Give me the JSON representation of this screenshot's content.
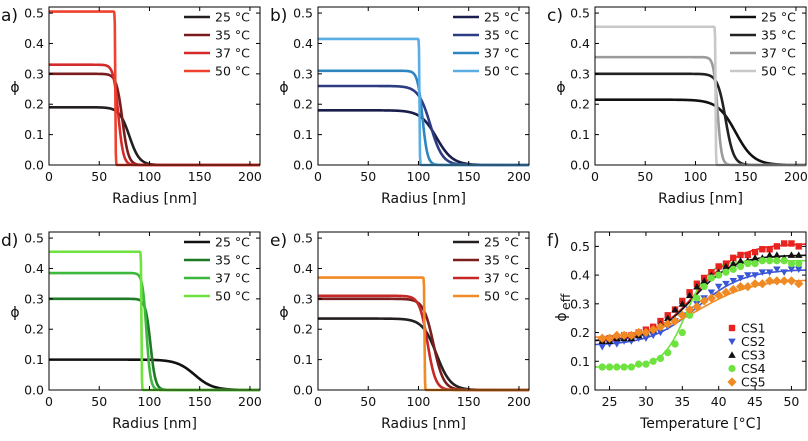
{
  "chart_data": [
    {
      "type": "line",
      "panel_label": "a)",
      "xlabel": "Radius [nm]",
      "ylabel": "ϕ",
      "xlim": [
        0,
        210
      ],
      "ylim": [
        0,
        0.52
      ],
      "xticks": [
        0,
        50,
        100,
        150,
        200
      ],
      "yticks": [
        0.0,
        0.1,
        0.2,
        0.3,
        0.4,
        0.5
      ],
      "legend_position": "top-right",
      "series": [
        {
          "name": "25 °C",
          "color": "#231f20",
          "plateau": 0.19,
          "r_edge": 80,
          "width": 5
        },
        {
          "name": "35 °C",
          "color": "#7a1c1c",
          "plateau": 0.3,
          "r_edge": 73,
          "width": 3
        },
        {
          "name": "37 °C",
          "color": "#d42a2a",
          "plateau": 0.33,
          "r_edge": 69,
          "width": 2.5
        },
        {
          "name": "50 °C",
          "color": "#f0412e",
          "plateau": 0.505,
          "r_edge": 66,
          "width": 0.2
        }
      ]
    },
    {
      "type": "line",
      "panel_label": "b)",
      "xlabel": "Radius [nm]",
      "ylabel": "ϕ",
      "xlim": [
        0,
        210
      ],
      "ylim": [
        0,
        0.52
      ],
      "xticks": [
        0,
        50,
        100,
        150,
        200
      ],
      "yticks": [
        0.0,
        0.1,
        0.2,
        0.3,
        0.4,
        0.5
      ],
      "legend_position": "top-right",
      "series": [
        {
          "name": "25 °C",
          "color": "#1a1c4a",
          "plateau": 0.18,
          "r_edge": 118,
          "width": 8
        },
        {
          "name": "35 °C",
          "color": "#2b3c82",
          "plateau": 0.26,
          "r_edge": 112,
          "width": 6
        },
        {
          "name": "37 °C",
          "color": "#2e86c1",
          "plateau": 0.31,
          "r_edge": 104,
          "width": 2.5
        },
        {
          "name": "50 °C",
          "color": "#5aaee4",
          "plateau": 0.415,
          "r_edge": 101,
          "width": 0.2
        }
      ]
    },
    {
      "type": "line",
      "panel_label": "c)",
      "xlabel": "Radius [nm]",
      "ylabel": "ϕ",
      "xlim": [
        0,
        210
      ],
      "ylim": [
        0,
        0.52
      ],
      "xticks": [
        0,
        50,
        100,
        150,
        200
      ],
      "yticks": [
        0.0,
        0.1,
        0.2,
        0.3,
        0.4,
        0.5
      ],
      "legend_position": "top-right",
      "series": [
        {
          "name": "25 °C",
          "color": "#111111",
          "plateau": 0.215,
          "r_edge": 140,
          "width": 9
        },
        {
          "name": "35 °C",
          "color": "#222222",
          "plateau": 0.3,
          "r_edge": 130,
          "width": 4
        },
        {
          "name": "37 °C",
          "color": "#9b9b9b",
          "plateau": 0.355,
          "r_edge": 122,
          "width": 2
        },
        {
          "name": "50 °C",
          "color": "#c8c8c8",
          "plateau": 0.455,
          "r_edge": 120,
          "width": 0.2
        }
      ]
    },
    {
      "type": "line",
      "panel_label": "d)",
      "xlabel": "Radius [nm]",
      "ylabel": "ϕ",
      "xlim": [
        0,
        210
      ],
      "ylim": [
        0,
        0.52
      ],
      "xticks": [
        0,
        50,
        100,
        150,
        200
      ],
      "yticks": [
        0.0,
        0.1,
        0.2,
        0.3,
        0.4,
        0.5
      ],
      "legend_position": "top-right",
      "series": [
        {
          "name": "25 °C",
          "color": "#111111",
          "plateau": 0.1,
          "r_edge": 145,
          "width": 9
        },
        {
          "name": "35 °C",
          "color": "#1e7a24",
          "plateau": 0.3,
          "r_edge": 101,
          "width": 2.5
        },
        {
          "name": "37 °C",
          "color": "#3cb83c",
          "plateau": 0.385,
          "r_edge": 97,
          "width": 2
        },
        {
          "name": "50 °C",
          "color": "#6ee23e",
          "plateau": 0.455,
          "r_edge": 92,
          "width": 0.2
        }
      ]
    },
    {
      "type": "line",
      "panel_label": "e)",
      "xlabel": "Radius [nm]",
      "ylabel": "ϕ",
      "xlim": [
        0,
        210
      ],
      "ylim": [
        0,
        0.52
      ],
      "xticks": [
        0,
        50,
        100,
        150,
        200
      ],
      "yticks": [
        0.0,
        0.1,
        0.2,
        0.3,
        0.4,
        0.5
      ],
      "legend_position": "top-right",
      "series": [
        {
          "name": "25 °C",
          "color": "#231f20",
          "plateau": 0.235,
          "r_edge": 118,
          "width": 7
        },
        {
          "name": "35 °C",
          "color": "#7a1e1e",
          "plateau": 0.3,
          "r_edge": 115,
          "width": 5
        },
        {
          "name": "37 °C",
          "color": "#c62828",
          "plateau": 0.31,
          "r_edge": 109,
          "width": 4
        },
        {
          "name": "50 °C",
          "color": "#f08a24",
          "plateau": 0.37,
          "r_edge": 106,
          "width": 0.2
        }
      ]
    },
    {
      "type": "scatter",
      "panel_label": "f)",
      "xlabel": "Temperature [°C]",
      "ylabel": "ϕ",
      "ylabel_subscript": "eff",
      "xlim": [
        23,
        52
      ],
      "ylim": [
        0,
        0.55
      ],
      "xticks": [
        25,
        30,
        35,
        40,
        45,
        50
      ],
      "yticks": [
        0.0,
        0.1,
        0.2,
        0.3,
        0.4,
        0.5
      ],
      "legend_position": "bottom-right",
      "x": [
        24,
        25,
        26,
        27,
        28,
        29,
        30,
        31,
        32,
        33,
        34,
        35,
        36,
        37,
        38,
        39,
        40,
        41,
        42,
        43,
        44,
        45,
        46,
        47,
        48,
        49,
        50,
        51
      ],
      "series": [
        {
          "name": "CS1",
          "marker": "square",
          "color": "#e8231f",
          "values": [
            0.17,
            0.18,
            0.18,
            0.19,
            0.19,
            0.2,
            0.21,
            0.22,
            0.24,
            0.26,
            0.28,
            0.31,
            0.34,
            0.37,
            0.39,
            0.41,
            0.43,
            0.44,
            0.46,
            0.47,
            0.47,
            0.48,
            0.49,
            0.49,
            0.5,
            0.51,
            0.51,
            0.5
          ],
          "fit": {
            "low": 0.17,
            "high": 0.51,
            "mid": 37.0,
            "slope": 3.0
          }
        },
        {
          "name": "CS2",
          "marker": "triangle-down",
          "color": "#3a55d6",
          "values": [
            0.15,
            0.16,
            0.16,
            0.17,
            0.17,
            0.18,
            0.18,
            0.19,
            0.2,
            0.22,
            0.24,
            0.26,
            0.28,
            0.3,
            0.32,
            0.34,
            0.36,
            0.37,
            0.38,
            0.39,
            0.4,
            0.4,
            0.41,
            0.41,
            0.42,
            0.41,
            0.42,
            0.42
          ],
          "fit": {
            "low": 0.155,
            "high": 0.42,
            "mid": 37.0,
            "slope": 3.2
          }
        },
        {
          "name": "CS3",
          "marker": "triangle-up",
          "color": "#111111",
          "values": [
            0.17,
            0.17,
            0.18,
            0.18,
            0.18,
            0.19,
            0.2,
            0.21,
            0.23,
            0.25,
            0.28,
            0.3,
            0.33,
            0.36,
            0.38,
            0.4,
            0.41,
            0.43,
            0.44,
            0.45,
            0.45,
            0.46,
            0.46,
            0.47,
            0.47,
            0.46,
            0.47,
            0.47
          ],
          "fit": {
            "low": 0.17,
            "high": 0.47,
            "mid": 36.5,
            "slope": 2.8
          }
        },
        {
          "name": "CS4",
          "marker": "circle",
          "color": "#6ee23e",
          "values": [
            0.08,
            0.08,
            0.08,
            0.08,
            0.08,
            0.09,
            0.09,
            0.1,
            0.11,
            0.13,
            0.16,
            0.2,
            0.26,
            0.32,
            0.36,
            0.39,
            0.4,
            0.41,
            0.42,
            0.43,
            0.44,
            0.44,
            0.45,
            0.45,
            0.45,
            0.45,
            0.44,
            0.44
          ],
          "fit": {
            "low": 0.08,
            "high": 0.45,
            "mid": 35.5,
            "slope": 1.6
          }
        },
        {
          "name": "CS5",
          "marker": "diamond",
          "color": "#f08a24",
          "values": [
            0.18,
            0.18,
            0.19,
            0.19,
            0.19,
            0.2,
            0.2,
            0.21,
            0.22,
            0.23,
            0.24,
            0.26,
            0.28,
            0.29,
            0.31,
            0.32,
            0.33,
            0.34,
            0.35,
            0.36,
            0.36,
            0.37,
            0.37,
            0.38,
            0.38,
            0.38,
            0.38,
            0.37
          ],
          "fit": {
            "low": 0.18,
            "high": 0.385,
            "mid": 37.5,
            "slope": 3.6
          }
        }
      ]
    }
  ]
}
